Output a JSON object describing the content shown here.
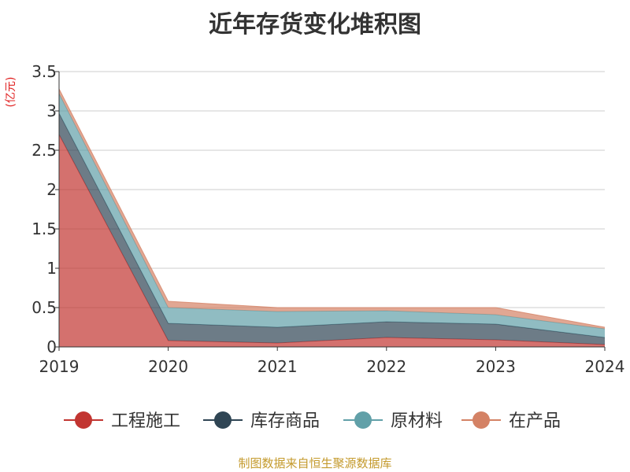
{
  "chart_data": {
    "type": "area",
    "title": "近年存货变化堆积图",
    "ylabel": "(亿元)",
    "xlabel": "",
    "x": [
      "2019",
      "2020",
      "2021",
      "2022",
      "2023",
      "2024"
    ],
    "ylim": [
      0,
      3.5
    ],
    "yticks": [
      "0",
      "0.5",
      "1",
      "1.5",
      "2",
      "2.5",
      "3",
      "3.5"
    ],
    "stacked": true,
    "grid": true,
    "legend_position": "bottom",
    "series": [
      {
        "name": "工程施工",
        "color": "#c23531",
        "values": [
          2.7,
          0.08,
          0.05,
          0.12,
          0.09,
          0.03
        ]
      },
      {
        "name": "库存商品",
        "color": "#2f4554",
        "values": [
          0.27,
          0.22,
          0.2,
          0.2,
          0.2,
          0.09
        ]
      },
      {
        "name": "原材料",
        "color": "#61a0a8",
        "values": [
          0.25,
          0.2,
          0.2,
          0.14,
          0.12,
          0.11
        ]
      },
      {
        "name": "在产品",
        "color": "#d48265",
        "values": [
          0.06,
          0.08,
          0.05,
          0.04,
          0.09,
          0.02
        ]
      }
    ]
  },
  "source_note": "制图数据来自恒生聚源数据库"
}
